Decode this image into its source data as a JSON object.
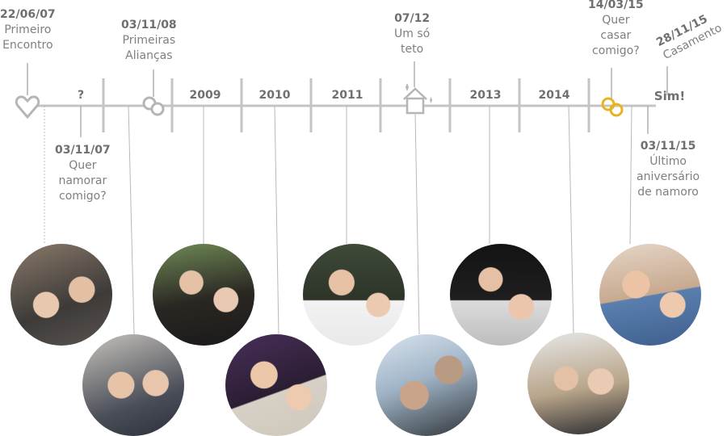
{
  "events": {
    "e1": {
      "date": "22/06/07",
      "text1": "Primeiro",
      "text2": "Encontro"
    },
    "e2": {
      "date": "03/11/07",
      "text1": "Quer",
      "text2": "namorar",
      "text3": "comigo?"
    },
    "e3": {
      "date": "03/11/08",
      "text1": "Primeiras",
      "text2": "Alianças"
    },
    "e4": {
      "date": "07/12",
      "text1": "Um só",
      "text2": "teto"
    },
    "e5": {
      "date": "14/03/15",
      "text1": "Quer",
      "text2": "casar",
      "text3": "comigo?"
    },
    "e6": {
      "date": "03/11/15",
      "text1": "Último",
      "text2": "aniversário",
      "text3": "de namoro"
    },
    "e7": {
      "date": "28/11/15",
      "text1": "Casamento"
    }
  },
  "timeline": {
    "unknown_mark": "?",
    "years": [
      "2009",
      "2010",
      "2011",
      "2013",
      "2014"
    ],
    "end_label": "Sim!"
  },
  "icons": {
    "heart": "heart-outline-icon",
    "rings": "two-rings-icon",
    "house": "house-icon",
    "gold_rings": "gold-rings-icon"
  },
  "colors": {
    "line": "#c4c4c4",
    "text": "#7f7f7f",
    "gold": "#e8b321"
  },
  "photos": [
    "photo-2007",
    "photo-2008",
    "photo-2009",
    "photo-2010",
    "photo-2011",
    "photo-2012",
    "photo-2013",
    "photo-2014",
    "photo-2015"
  ]
}
